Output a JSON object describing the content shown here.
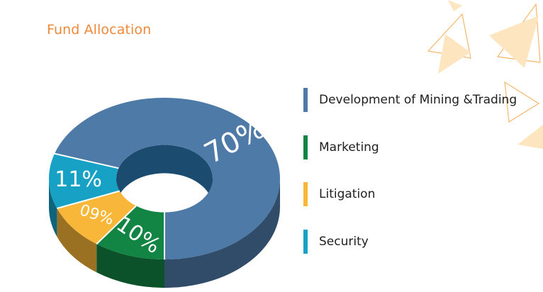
{
  "title": "Fund Allocation",
  "chart_data": {
    "type": "pie",
    "title": "Fund Allocation",
    "style": "3d-donut",
    "slices": [
      {
        "label": "Development of Mining &Trading",
        "value": 70,
        "value_label": "70%",
        "color": "#4e7aa8"
      },
      {
        "label": "Marketing",
        "value": 10,
        "value_label": "10%",
        "color": "#128443"
      },
      {
        "label": "Litigation",
        "value": 9,
        "value_label": "09%",
        "color": "#f8b739"
      },
      {
        "label": "Security",
        "value": 11,
        "value_label": "11%",
        "color": "#17a1c4"
      }
    ]
  },
  "colors": {
    "title": "#f0883a",
    "decoration": "#fbdcab"
  }
}
